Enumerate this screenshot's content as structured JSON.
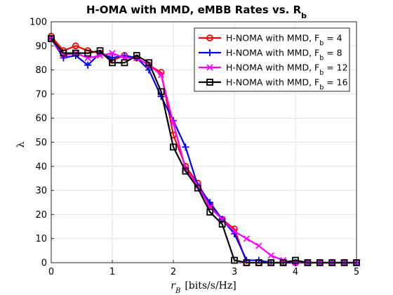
{
  "chart_data": {
    "type": "line",
    "title_main": "H-OMA with MMD, eMBB Rates vs. R",
    "title_sub": "b",
    "xlabel_var": "r",
    "xlabel_sub": "B",
    "xlabel_unit": "[bits/s/Hz]",
    "ylabel": "λ",
    "xlim": [
      0,
      5
    ],
    "ylim": [
      0,
      100
    ],
    "xticks": [
      "0",
      "1",
      "2",
      "3",
      "4",
      "5"
    ],
    "yticks": [
      "0",
      "10",
      "20",
      "30",
      "40",
      "50",
      "60",
      "70",
      "80",
      "90",
      "100"
    ],
    "grid": true,
    "legend_position": "top-right",
    "x": [
      0,
      0.2,
      0.4,
      0.6,
      0.8,
      1.0,
      1.2,
      1.4,
      1.6,
      1.8,
      2.0,
      2.2,
      2.4,
      2.6,
      2.8,
      3.0,
      3.2,
      3.4,
      3.6,
      3.8,
      4.0,
      4.2,
      4.4,
      4.6,
      4.8,
      5.0
    ],
    "series": [
      {
        "name_prefix": "H-NOMA with MMD, F",
        "name_sub": "b",
        "name_suffix": " = 4",
        "color": "#ff0000",
        "marker": "circle",
        "values": [
          94,
          88,
          90,
          88,
          87,
          84,
          86,
          85,
          82,
          79,
          53,
          40,
          33,
          24,
          18,
          14,
          0,
          0,
          0,
          0,
          0,
          0,
          0,
          0,
          0,
          0
        ]
      },
      {
        "name_prefix": "H-NOMA with MMD, F",
        "name_sub": "b",
        "name_suffix": " = 8",
        "color": "#0000ff",
        "marker": "plus",
        "values": [
          93,
          85,
          86,
          82,
          87,
          85,
          86,
          85,
          80,
          69,
          59,
          48,
          32,
          25,
          18,
          12,
          1,
          1,
          0,
          0,
          0,
          0,
          0,
          0,
          0,
          0
        ]
      },
      {
        "name_prefix": "H-NOMA with MMD, F",
        "name_sub": "b",
        "name_suffix": " = 12",
        "color": "#ff00ff",
        "marker": "x",
        "values": [
          93,
          86,
          87,
          85,
          86,
          87,
          85,
          85,
          82,
          78,
          58,
          39,
          32,
          23,
          18,
          13,
          10,
          7,
          3,
          1,
          0,
          0,
          0,
          0,
          0,
          0
        ]
      },
      {
        "name_prefix": "H-NOMA with MMD, F",
        "name_sub": "b",
        "name_suffix": " = 16",
        "color": "#000000",
        "marker": "square",
        "values": [
          93,
          87,
          87,
          87,
          88,
          83,
          83,
          86,
          83,
          71,
          48,
          38,
          31,
          21,
          16,
          1,
          0,
          0,
          0,
          0,
          1,
          0,
          0,
          0,
          0,
          0
        ]
      }
    ]
  }
}
